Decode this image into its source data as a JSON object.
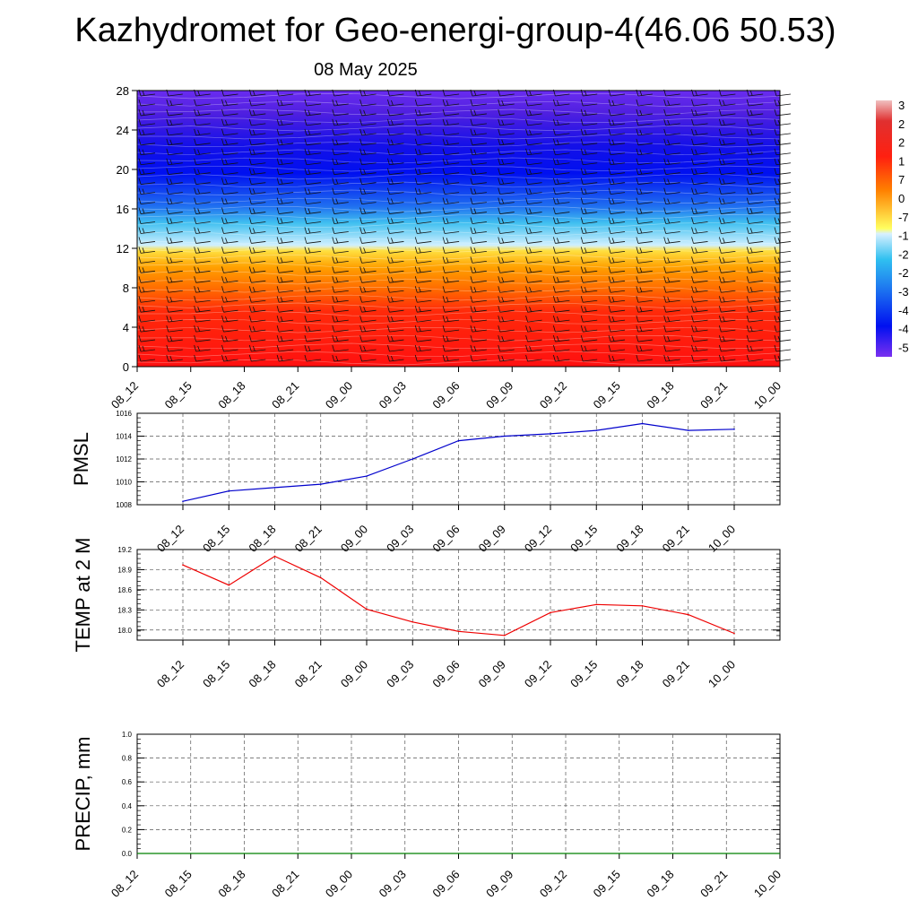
{
  "title": "Kazhydromet for Geo-energi-group-4(46.06 50.53)",
  "subtitle": "08 May 2025",
  "time_labels": [
    "08_12",
    "08_15",
    "08_18",
    "08_21",
    "09_00",
    "09_03",
    "09_06",
    "09_09",
    "09_12",
    "09_15",
    "09_18",
    "09_21",
    "10_00"
  ],
  "colorbar_labels": [
    "3",
    "2",
    "2",
    "1",
    "7",
    "0",
    "-7",
    "-1",
    "-2",
    "-2",
    "-3",
    "-4",
    "-4",
    "-5"
  ],
  "colors": {
    "pmsl_line": "#0000cc",
    "temp_line": "#ee0000",
    "precip_line": "#008000"
  },
  "chart_data": [
    {
      "type": "heatmap",
      "description_key": "temperature cross-section with wind barbs",
      "x": [
        "08_12",
        "08_15",
        "08_18",
        "08_21",
        "09_00",
        "09_03",
        "09_06",
        "09_09",
        "09_12",
        "09_15",
        "09_18",
        "09_21",
        "10_00"
      ],
      "y_levels": [
        0,
        4,
        8,
        12,
        16,
        20,
        24,
        28
      ],
      "ylim": [
        0,
        28
      ],
      "yticks": [
        "0",
        "4",
        "8",
        "12",
        "16",
        "20",
        "24",
        "28"
      ],
      "values_by_level": [
        30,
        24,
        14,
        7,
        -10,
        -40,
        -55,
        -45
      ],
      "colorbar": [
        "3",
        "2",
        "2",
        "1",
        "7",
        "0",
        "-7",
        "-1",
        "-2",
        "-2",
        "-3",
        "-4",
        "-4",
        "-5"
      ]
    },
    {
      "type": "line",
      "ylabel": "PMSL",
      "x": [
        "08_12",
        "08_15",
        "08_18",
        "08_21",
        "09_00",
        "09_03",
        "09_06",
        "09_09",
        "09_12",
        "09_15",
        "09_18",
        "09_21",
        "10_00"
      ],
      "values": [
        1008.3,
        1009.2,
        1009.5,
        1009.8,
        1010.5,
        1012.0,
        1013.6,
        1014.0,
        1014.2,
        1014.5,
        1015.1,
        1014.5,
        1014.6
      ],
      "ylim": [
        1008,
        1016
      ],
      "yticks": [
        "1008",
        "1010",
        "1012",
        "1014",
        "1016"
      ],
      "grid": true
    },
    {
      "type": "line",
      "ylabel": "TEMP at 2 M",
      "x": [
        "08_12",
        "08_15",
        "08_18",
        "08_21",
        "09_00",
        "09_03",
        "09_06",
        "09_09",
        "09_12",
        "09_15",
        "09_18",
        "09_21",
        "10_00"
      ],
      "values": [
        18.97,
        18.67,
        19.1,
        18.78,
        18.31,
        18.12,
        17.98,
        17.92,
        18.26,
        18.38,
        18.36,
        18.23,
        17.95
      ],
      "ylim": [
        17.85,
        19.2
      ],
      "yticks": [
        "18.0",
        "18.3",
        "18.6",
        "18.9",
        "19.2"
      ],
      "grid": true
    },
    {
      "type": "line",
      "ylabel": "PRECIP, mm",
      "x": [
        "08_12",
        "08_15",
        "08_18",
        "08_21",
        "09_00",
        "09_03",
        "09_06",
        "09_09",
        "09_12",
        "09_15",
        "09_18",
        "09_21",
        "10_00"
      ],
      "values": [
        0,
        0,
        0,
        0,
        0,
        0,
        0,
        0,
        0,
        0,
        0,
        0,
        0
      ],
      "ylim": [
        0,
        1
      ],
      "yticks": [
        "0.0",
        "0.2",
        "0.4",
        "0.6",
        "0.8",
        "1.0"
      ],
      "grid": true
    }
  ]
}
